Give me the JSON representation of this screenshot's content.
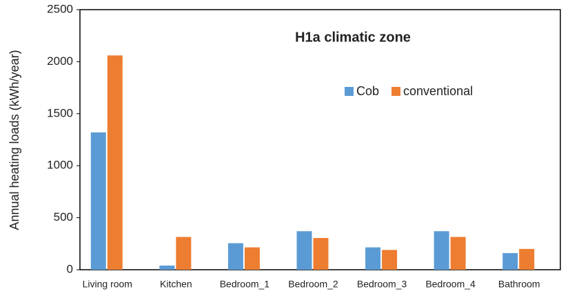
{
  "chart_data": {
    "type": "bar",
    "title": "H1a climatic zone",
    "y_label": "Annual heating loads (kWh/year)",
    "categories": [
      "Living room",
      "Kitchen",
      "Bedroom_1",
      "Bedroom_2",
      "Bedroom_3",
      "Bedroom_4",
      "Bathroom"
    ],
    "series": [
      {
        "name": "Cob",
        "color": "#5b9bd5",
        "values": [
          1320,
          40,
          255,
          370,
          215,
          370,
          160
        ]
      },
      {
        "name": "conventional",
        "color": "#ed7d31",
        "values": [
          2060,
          315,
          215,
          305,
          190,
          315,
          200
        ]
      }
    ],
    "ylim": [
      0,
      2500
    ],
    "yticks": [
      0,
      500,
      1000,
      1500,
      2000,
      2500
    ],
    "grid": false
  }
}
